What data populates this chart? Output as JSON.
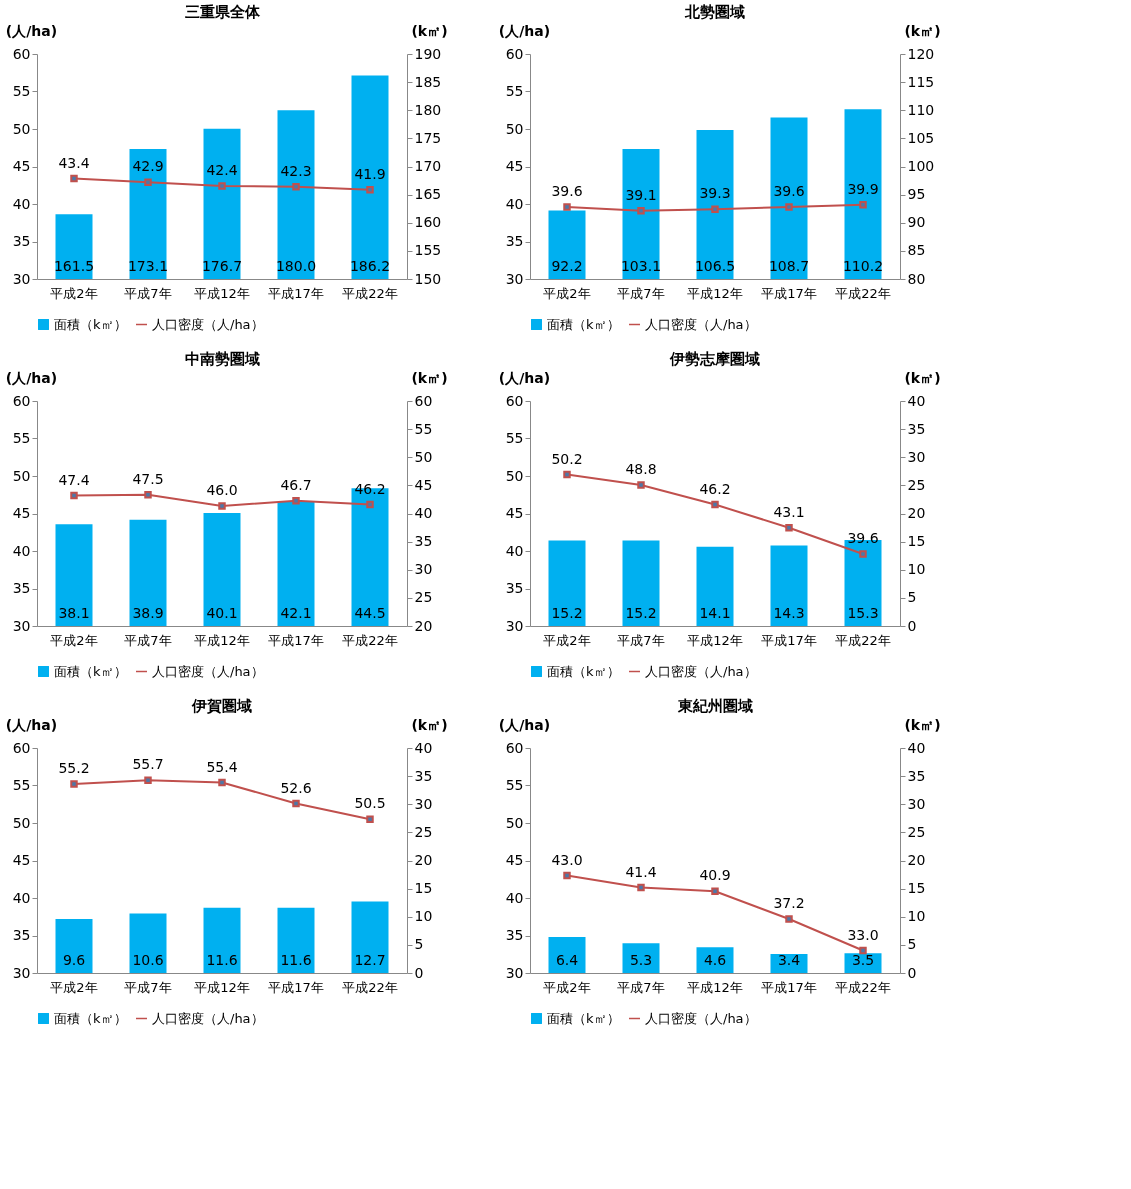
{
  "chart_data": [
    {
      "type": "bar",
      "title": "三重県全体",
      "ylabel": "(人/ha)",
      "y2label": "(k㎡)",
      "categories": [
        "平成2年",
        "平成7年",
        "平成12年",
        "平成17年",
        "平成22年"
      ],
      "legend": "bottom",
      "grid": false,
      "data_labels": true,
      "marker": "square",
      "ylim": [
        30,
        60
      ],
      "yticks": [
        30,
        35,
        40,
        45,
        50,
        55,
        60
      ],
      "y2lim": [
        150,
        190
      ],
      "y2ticks": [
        150,
        155,
        160,
        165,
        170,
        175,
        180,
        185,
        190
      ],
      "series": [
        {
          "name": "面積（k㎡）",
          "type": "bar",
          "axis": "y2",
          "color": "#00b0f0",
          "values": [
            161.5,
            173.1,
            176.7,
            180.0,
            186.2
          ],
          "value_labels": [
            "161.5",
            "173.1",
            "176.7",
            "180.0",
            "186.2"
          ]
        },
        {
          "name": "人口密度（人/ha）",
          "type": "line",
          "color": "#c0504d",
          "values": [
            43.4,
            42.9,
            42.4,
            42.3,
            41.9
          ]
        }
      ]
    },
    {
      "type": "bar",
      "title": "北勢圏域",
      "ylabel": "(人/ha)",
      "y2label": "(k㎡)",
      "categories": [
        "平成2年",
        "平成7年",
        "平成12年",
        "平成17年",
        "平成22年"
      ],
      "legend": "bottom",
      "grid": false,
      "data_labels": true,
      "marker": "square",
      "ylim": [
        30,
        60
      ],
      "yticks": [
        30,
        35,
        40,
        45,
        50,
        55,
        60
      ],
      "y2lim": [
        80,
        120
      ],
      "y2ticks": [
        80,
        85,
        90,
        95,
        100,
        105,
        110,
        115,
        120
      ],
      "series": [
        {
          "name": "面積（k㎡）",
          "type": "bar",
          "axis": "y2",
          "color": "#00b0f0",
          "values": [
            92.2,
            103.1,
            106.5,
            108.7,
            110.2
          ]
        },
        {
          "name": "人口密度（人/ha）",
          "type": "line",
          "color": "#c0504d",
          "values": [
            39.6,
            39.1,
            39.3,
            39.6,
            39.9
          ]
        }
      ]
    },
    {
      "type": "bar",
      "title": "中南勢圏域",
      "ylabel": "(人/ha)",
      "y2label": "(k㎡)",
      "categories": [
        "平成2年",
        "平成7年",
        "平成12年",
        "平成17年",
        "平成22年"
      ],
      "legend": "bottom",
      "grid": false,
      "data_labels": true,
      "marker": "square",
      "ylim": [
        30,
        60
      ],
      "yticks": [
        30,
        35,
        40,
        45,
        50,
        55,
        60
      ],
      "y2lim": [
        20,
        60
      ],
      "y2ticks": [
        20,
        25,
        30,
        35,
        40,
        45,
        50,
        55,
        60
      ],
      "series": [
        {
          "name": "面積（k㎡）",
          "type": "bar",
          "axis": "y2",
          "color": "#00b0f0",
          "values": [
            38.1,
            38.9,
            40.1,
            42.1,
            44.5
          ]
        },
        {
          "name": "人口密度（人/ha）",
          "type": "line",
          "color": "#c0504d",
          "values": [
            47.4,
            47.5,
            46.0,
            46.7,
            46.2
          ],
          "value_labels": [
            "47.4",
            "47.5",
            "46.0",
            "46.7",
            "46.2"
          ]
        }
      ]
    },
    {
      "type": "bar",
      "title": "伊勢志摩圏域",
      "ylabel": "(人/ha)",
      "y2label": "(k㎡)",
      "categories": [
        "平成2年",
        "平成7年",
        "平成12年",
        "平成17年",
        "平成22年"
      ],
      "legend": "bottom",
      "grid": false,
      "data_labels": true,
      "marker": "square",
      "ylim": [
        30,
        60
      ],
      "yticks": [
        30,
        35,
        40,
        45,
        50,
        55,
        60
      ],
      "y2lim": [
        0,
        40
      ],
      "y2ticks": [
        0,
        5,
        10,
        15,
        20,
        25,
        30,
        35,
        40
      ],
      "series": [
        {
          "name": "面積（k㎡）",
          "type": "bar",
          "axis": "y2",
          "color": "#00b0f0",
          "values": [
            15.2,
            15.2,
            14.1,
            14.3,
            15.3
          ]
        },
        {
          "name": "人口密度（人/ha）",
          "type": "line",
          "color": "#c0504d",
          "values": [
            50.2,
            48.8,
            46.2,
            43.1,
            39.6
          ]
        }
      ]
    },
    {
      "type": "bar",
      "title": "伊賀圏域",
      "ylabel": "(人/ha)",
      "y2label": "(k㎡)",
      "categories": [
        "平成2年",
        "平成7年",
        "平成12年",
        "平成17年",
        "平成22年"
      ],
      "legend": "bottom",
      "grid": false,
      "data_labels": true,
      "marker": "square",
      "ylim": [
        30,
        60
      ],
      "yticks": [
        30,
        35,
        40,
        45,
        50,
        55,
        60
      ],
      "y2lim": [
        0,
        40
      ],
      "y2ticks": [
        0,
        5,
        10,
        15,
        20,
        25,
        30,
        35,
        40
      ],
      "series": [
        {
          "name": "面積（k㎡）",
          "type": "bar",
          "axis": "y2",
          "color": "#00b0f0",
          "values": [
            9.6,
            10.6,
            11.6,
            11.6,
            12.7
          ]
        },
        {
          "name": "人口密度（人/ha）",
          "type": "line",
          "color": "#c0504d",
          "values": [
            55.2,
            55.7,
            55.4,
            52.6,
            50.5
          ]
        }
      ]
    },
    {
      "type": "bar",
      "title": "東紀州圏域",
      "ylabel": "(人/ha)",
      "y2label": "(k㎡)",
      "categories": [
        "平成2年",
        "平成7年",
        "平成12年",
        "平成17年",
        "平成22年"
      ],
      "legend": "bottom",
      "grid": false,
      "data_labels": true,
      "marker": "square",
      "ylim": [
        30,
        60
      ],
      "yticks": [
        30,
        35,
        40,
        45,
        50,
        55,
        60
      ],
      "y2lim": [
        0,
        40
      ],
      "y2ticks": [
        0,
        5,
        10,
        15,
        20,
        25,
        30,
        35,
        40
      ],
      "series": [
        {
          "name": "面積（k㎡）",
          "type": "bar",
          "axis": "y2",
          "color": "#00b0f0",
          "values": [
            6.4,
            5.3,
            4.6,
            3.4,
            3.5
          ]
        },
        {
          "name": "人口密度（人/ha）",
          "type": "line",
          "color": "#c0504d",
          "values": [
            43.0,
            41.4,
            40.9,
            37.2,
            33.0
          ],
          "value_labels": [
            "43.0",
            "41.4",
            "40.9",
            "37.2",
            "33.0"
          ]
        }
      ]
    }
  ]
}
